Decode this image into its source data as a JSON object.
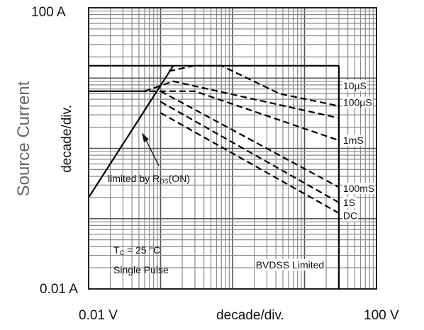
{
  "chart_data": {
    "type": "line",
    "title": "",
    "xlabel": "decade/div.",
    "ylabel_outer": "Source Current",
    "ylabel_inner": "decade/div.",
    "x_scale": "log",
    "y_scale": "log",
    "xlim": [
      0.01,
      100
    ],
    "ylim": [
      0.01,
      100
    ],
    "x_tick_labels": [
      {
        "value": 0.01,
        "text": "0.01 V"
      },
      {
        "value": 100,
        "text": "100  V"
      }
    ],
    "y_tick_labels": [
      {
        "value": 100,
        "text": "100  A"
      },
      {
        "value": 0.01,
        "text": "0.01 A"
      }
    ],
    "grid": true,
    "series": [
      {
        "name": "",
        "style": "solid",
        "x": [
          0.01,
          0.15
        ],
        "y": [
          0.2,
          15
        ]
      },
      {
        "name": "",
        "style": "solid",
        "x": [
          0.01,
          0.065
        ],
        "y": [
          6.5,
          6.5
        ]
      },
      {
        "name": "",
        "style": "solid",
        "x": [
          0.01,
          30
        ],
        "y": [
          15,
          15
        ]
      },
      {
        "name": "",
        "style": "solid",
        "x": [
          30,
          30
        ],
        "y": [
          15,
          0.01
        ]
      },
      {
        "name": "10µS",
        "style": "dashed",
        "x": [
          0.13,
          0.29,
          0.7,
          4.5,
          30
        ],
        "y": [
          12.5,
          15,
          15,
          6,
          4
        ]
      },
      {
        "name": "100µS",
        "style": "dashed",
        "x": [
          0.06,
          0.15,
          30
        ],
        "y": [
          6.5,
          9,
          2.7
        ]
      },
      {
        "name": "1mS",
        "style": "dashed",
        "x": [
          0.07,
          0.3,
          30
        ],
        "y": [
          6.5,
          6.5,
          1.3
        ]
      },
      {
        "name": "100mS",
        "style": "dashed",
        "x": [
          0.1,
          30
        ],
        "y": [
          6.5,
          0.28
        ]
      },
      {
        "name": "1S",
        "style": "dashed",
        "x": [
          0.1,
          30
        ],
        "y": [
          4.6,
          0.17
        ]
      },
      {
        "name": "DC",
        "style": "dashed",
        "x": [
          0.1,
          30
        ],
        "y": [
          3.2,
          0.12
        ]
      }
    ],
    "annotations": [
      {
        "text": "10µS",
        "x": 30,
        "y": 7.8
      },
      {
        "text": "100µS",
        "x": 30,
        "y": 4.5
      },
      {
        "text": "1mS",
        "x": 30,
        "y": 1.3
      },
      {
        "text": "100mS",
        "x": 30,
        "y": 0.27
      },
      {
        "text": "1S",
        "x": 30,
        "y": 0.17
      },
      {
        "text": "DC",
        "x": 30,
        "y": 0.11
      },
      {
        "text": "BVDSS Limited",
        "x": 5,
        "y": 0.022
      }
    ],
    "rds_label": {
      "prefix": "limited by R",
      "sub": "DS",
      "suffix": "(ON)"
    },
    "note_tc": {
      "prefix": "T",
      "sub": "C",
      "suffix": " = 25 °C"
    },
    "note_pulse": "Single Pulse"
  }
}
